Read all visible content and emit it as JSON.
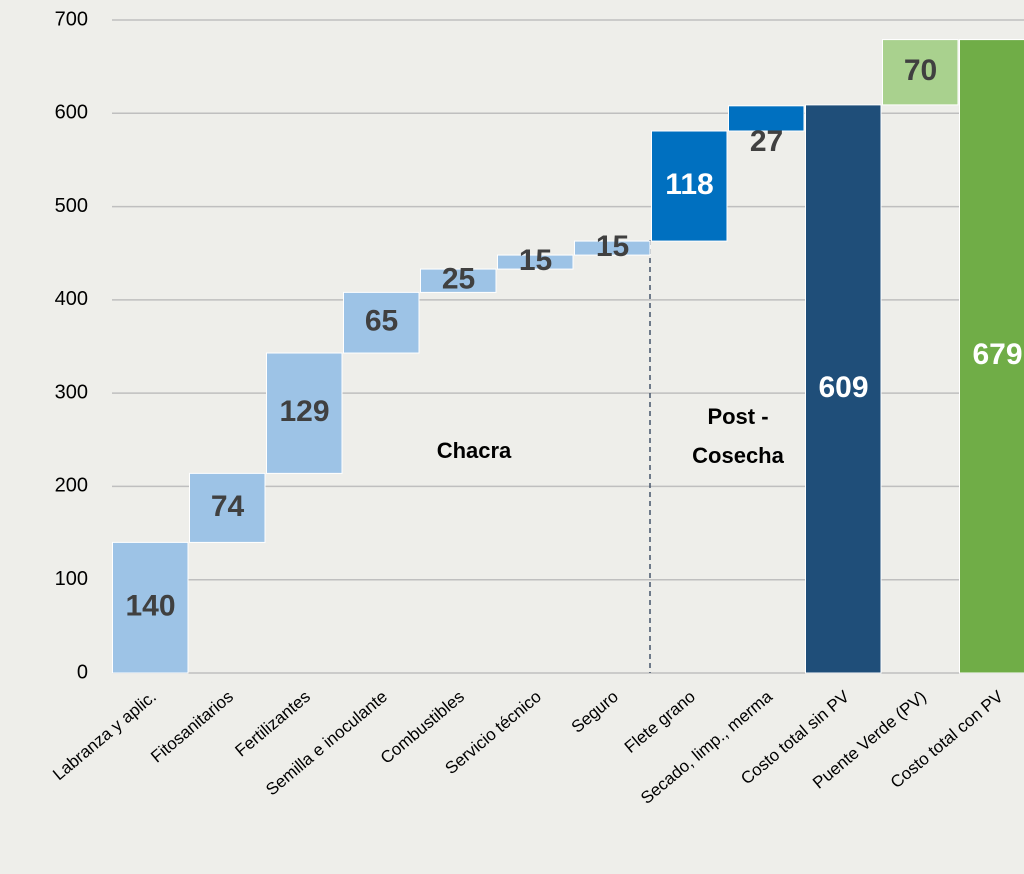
{
  "chart_data": {
    "type": "waterfall",
    "categories": [
      "Labranza y aplic.",
      "Fitosanitarios",
      "Fertilizantes",
      "Semilla e inoculante",
      "Combustibles",
      "Servicio técnico",
      "Seguro",
      "Flete grano",
      "Secado, limp., merma",
      "Costo total sin PV",
      "Puente Verde (PV)",
      "Costo total con PV"
    ],
    "values": [
      140,
      74,
      129,
      65,
      25,
      15,
      15,
      118,
      27,
      609,
      70,
      679
    ],
    "measure": [
      "relative",
      "relative",
      "relative",
      "relative",
      "relative",
      "relative",
      "relative",
      "relative",
      "relative",
      "total",
      "relative",
      "total"
    ],
    "colors": [
      "#9dc3e6",
      "#9dc3e6",
      "#9dc3e6",
      "#9dc3e6",
      "#9dc3e6",
      "#9dc3e6",
      "#9dc3e6",
      "#0070c0",
      "#0070c0",
      "#1f4e79",
      "#a9d18e",
      "#70ad47"
    ],
    "ylim": [
      0,
      700
    ],
    "yticks": [
      0,
      100,
      200,
      300,
      400,
      500,
      600,
      700
    ],
    "grid": true,
    "annotations": [
      "Chacra",
      "Post -",
      "Cosecha"
    ]
  }
}
